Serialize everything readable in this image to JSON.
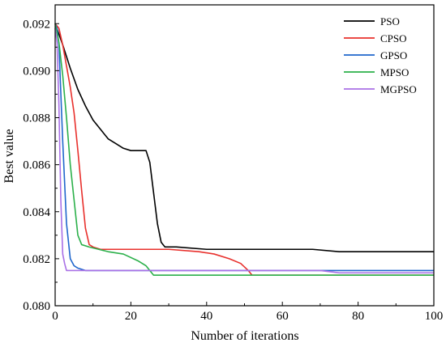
{
  "chart_data": {
    "type": "line",
    "title": "",
    "xlabel": "Number of iterations",
    "ylabel": "Best value",
    "xlim": [
      0,
      100
    ],
    "ylim": [
      0.08,
      0.0928
    ],
    "x_ticks": [
      0,
      20,
      40,
      60,
      80,
      100
    ],
    "x_tick_labels": [
      "0",
      "20",
      "40",
      "60",
      "80",
      "100"
    ],
    "y_ticks": [
      0.08,
      0.082,
      0.084,
      0.086,
      0.088,
      0.09,
      0.092
    ],
    "y_tick_labels": [
      "0.080",
      "0.082",
      "0.084",
      "0.086",
      "0.088",
      "0.090",
      "0.092"
    ],
    "grid": false,
    "legend_position": "top-right",
    "series": [
      {
        "name": "PSO",
        "color": "#000000",
        "points": [
          [
            0,
            0.092
          ],
          [
            2,
            0.0911
          ],
          [
            4,
            0.0901
          ],
          [
            6,
            0.0892
          ],
          [
            8,
            0.0885
          ],
          [
            10,
            0.0879
          ],
          [
            12,
            0.0875
          ],
          [
            14,
            0.0871
          ],
          [
            16,
            0.0869
          ],
          [
            18,
            0.0867
          ],
          [
            20,
            0.0866
          ],
          [
            22,
            0.0866
          ],
          [
            24,
            0.0866
          ],
          [
            25,
            0.0861
          ],
          [
            26,
            0.0848
          ],
          [
            27,
            0.0835
          ],
          [
            28,
            0.0827
          ],
          [
            29,
            0.0825
          ],
          [
            32,
            0.0825
          ],
          [
            40,
            0.0824
          ],
          [
            60,
            0.0824
          ],
          [
            68,
            0.0824
          ],
          [
            75,
            0.0823
          ],
          [
            100,
            0.0823
          ]
        ]
      },
      {
        "name": "CPSO",
        "color": "#e8302c",
        "points": [
          [
            0,
            0.092
          ],
          [
            1,
            0.0918
          ],
          [
            2,
            0.0911
          ],
          [
            3,
            0.0902
          ],
          [
            4,
            0.0893
          ],
          [
            5,
            0.0882
          ],
          [
            6,
            0.0866
          ],
          [
            7,
            0.0849
          ],
          [
            8,
            0.0833
          ],
          [
            9,
            0.0826
          ],
          [
            10,
            0.0825
          ],
          [
            12,
            0.0824
          ],
          [
            20,
            0.0824
          ],
          [
            30,
            0.0824
          ],
          [
            38,
            0.0823
          ],
          [
            42,
            0.0822
          ],
          [
            46,
            0.082
          ],
          [
            49,
            0.0818
          ],
          [
            51,
            0.0815
          ],
          [
            52,
            0.0813
          ],
          [
            60,
            0.0813
          ],
          [
            100,
            0.0813
          ]
        ]
      },
      {
        "name": "GPSO",
        "color": "#1f66cc",
        "points": [
          [
            0,
            0.092
          ],
          [
            0.5,
            0.0918
          ],
          [
            1,
            0.0911
          ],
          [
            2,
            0.087
          ],
          [
            3,
            0.0835
          ],
          [
            4,
            0.082
          ],
          [
            5,
            0.0817
          ],
          [
            6,
            0.0816
          ],
          [
            8,
            0.0815
          ],
          [
            12,
            0.0815
          ],
          [
            20,
            0.0815
          ],
          [
            40,
            0.0815
          ],
          [
            60,
            0.0815
          ],
          [
            80,
            0.0815
          ],
          [
            100,
            0.0815
          ]
        ]
      },
      {
        "name": "MPSO",
        "color": "#2bb04a",
        "points": [
          [
            0,
            0.092
          ],
          [
            1,
            0.0912
          ],
          [
            2,
            0.0898
          ],
          [
            3,
            0.088
          ],
          [
            4,
            0.086
          ],
          [
            5,
            0.0845
          ],
          [
            6,
            0.083
          ],
          [
            7,
            0.0826
          ],
          [
            9,
            0.0825
          ],
          [
            14,
            0.0823
          ],
          [
            18,
            0.0822
          ],
          [
            22,
            0.0819
          ],
          [
            24,
            0.0817
          ],
          [
            26,
            0.0813
          ],
          [
            30,
            0.0813
          ],
          [
            50,
            0.0813
          ],
          [
            70,
            0.0813
          ],
          [
            100,
            0.0813
          ]
        ]
      },
      {
        "name": "MGPSO",
        "color": "#a970e6",
        "points": [
          [
            0,
            0.0918
          ],
          [
            0.5,
            0.0912
          ],
          [
            1,
            0.0885
          ],
          [
            1.5,
            0.0845
          ],
          [
            2,
            0.0822
          ],
          [
            2.5,
            0.0818
          ],
          [
            3,
            0.0815
          ],
          [
            5,
            0.0815
          ],
          [
            20,
            0.0815
          ],
          [
            50,
            0.0815
          ],
          [
            70,
            0.0815
          ],
          [
            75,
            0.0814
          ],
          [
            100,
            0.0814
          ]
        ]
      }
    ]
  }
}
